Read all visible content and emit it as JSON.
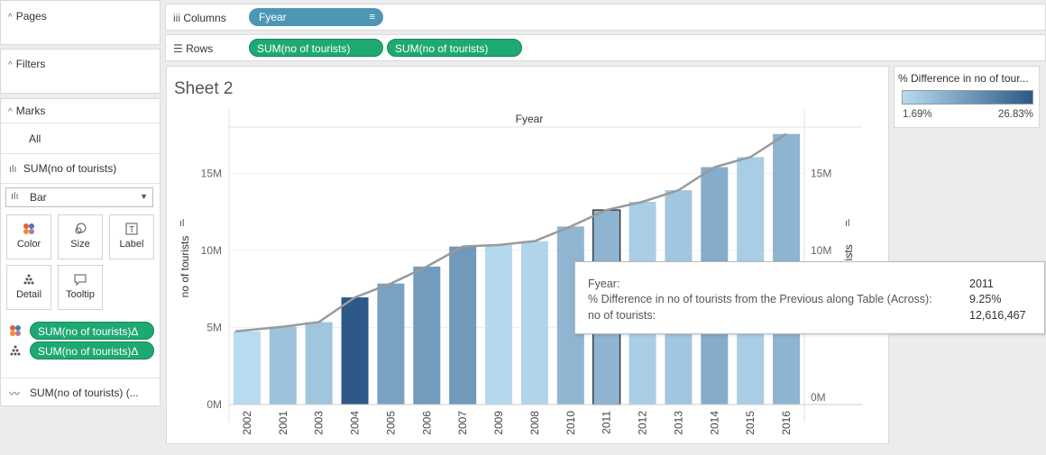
{
  "left": {
    "pages_title": "Pages",
    "filters_title": "Filters",
    "marks_title": "Marks",
    "marks_all": "All",
    "marks_sum_layer": "SUM(no of tourists)",
    "mark_type": "Bar",
    "buttons": {
      "color": "Color",
      "size": "Size",
      "label": "Label",
      "detail": "Detail",
      "tooltip": "Tooltip"
    },
    "pill_color": "SUM(no of tourists)Δ",
    "pill_detail": "SUM(no of tourists)Δ",
    "line_layer": "SUM(no of tourists) (..."
  },
  "shelves": {
    "columns_label": "Columns",
    "columns_pill": "Fyear",
    "rows_label": "Rows",
    "rows_pill_1": "SUM(no of tourists)",
    "rows_pill_2": "SUM(no of tourists)"
  },
  "sheet": {
    "title": "Sheet 2",
    "header": "Fyear"
  },
  "legend": {
    "title": "% Difference in no of tour...",
    "min": "1.69%",
    "max": "26.83%",
    "color_min": "#b7dbf0",
    "color_max": "#2c5987"
  },
  "tooltip": {
    "k1": "Fyear:",
    "v1": "2011",
    "k2": "% Difference in no of tourists from the Previous along Table (Across):",
    "v2": "9.25%",
    "k3": "no of tourists:",
    "v3": "12,616,467"
  },
  "chart_data": {
    "type": "bar",
    "categories": [
      "2002",
      "2001",
      "2003",
      "2004",
      "2005",
      "2006",
      "2007",
      "2009",
      "2008",
      "2010",
      "2011",
      "2012",
      "2013",
      "2014",
      "2015",
      "2016"
    ],
    "values": [
      4.75,
      5.05,
      5.35,
      6.95,
      7.85,
      8.95,
      10.25,
      10.35,
      10.6,
      11.55,
      12.62,
      13.15,
      13.9,
      15.4,
      16.05,
      17.55
    ],
    "color_values": [
      1.7,
      6.5,
      5.9,
      26.8,
      12.9,
      14.0,
      14.5,
      2.3,
      2.9,
      9.0,
      9.25,
      4.2,
      5.7,
      10.8,
      4.4,
      9.3
    ],
    "line_values": [
      4.75,
      5.05,
      5.35,
      6.95,
      7.85,
      8.95,
      10.25,
      10.35,
      10.6,
      11.55,
      12.62,
      13.15,
      13.9,
      15.4,
      16.05,
      17.55
    ],
    "yticks": [
      "0M",
      "5M",
      "10M",
      "15M"
    ],
    "ytick_values": [
      0,
      5,
      10,
      15
    ],
    "ylabel_left": "no of tourists",
    "ylabel_right": "ourists",
    "ylim": [
      0,
      18
    ],
    "highlight": "2011"
  }
}
